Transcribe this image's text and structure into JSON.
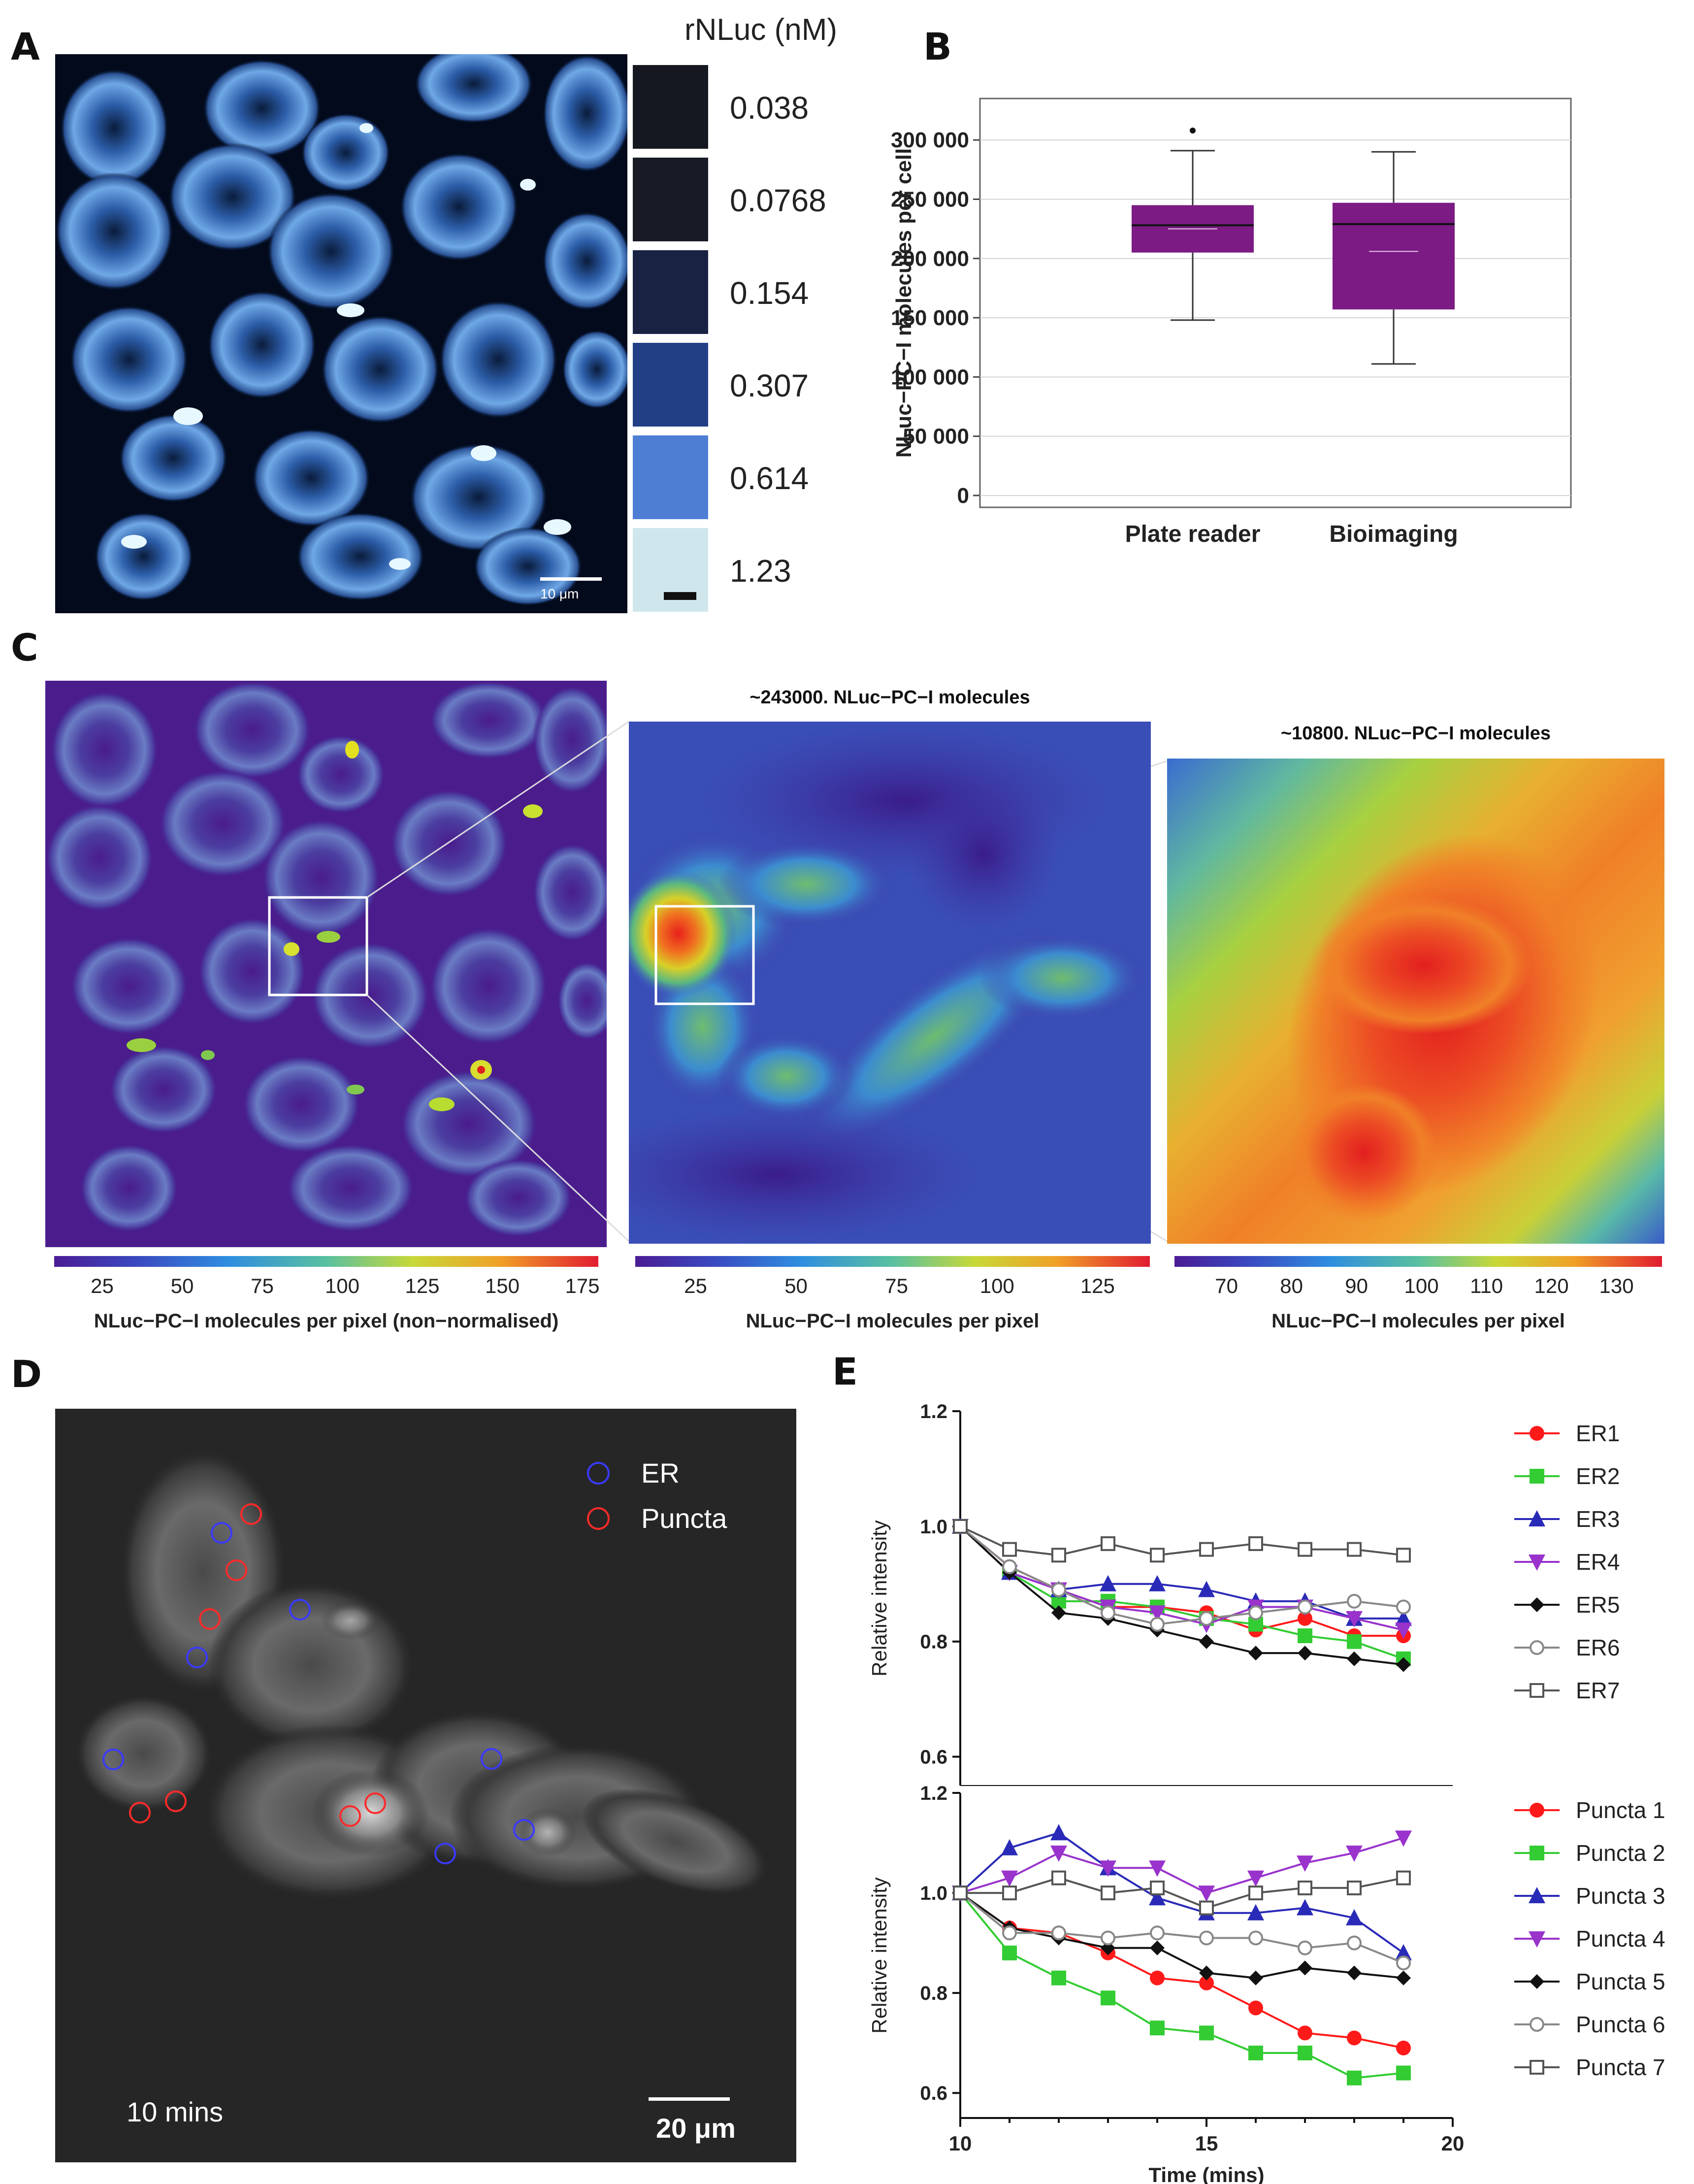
{
  "panels": {
    "a": "A",
    "b": "B",
    "c": "C",
    "d": "D",
    "e": "E"
  },
  "panelA": {
    "title": "rNLuc (nM)",
    "concentrations": [
      "0.038",
      "0.0768",
      "0.154",
      "0.307",
      "0.614",
      "1.23"
    ],
    "swatch_colors": [
      "#151820",
      "#181b26",
      "#1a2244",
      "#223f86",
      "#4e7ed4",
      "#cfe7ec"
    ],
    "scalebar_label": "10 μm"
  },
  "panelC": {
    "zoom1_title": "~243000. NLuc−PC−I molecules",
    "zoom2_title": "~10800. NLuc−PC−I molecules",
    "colorbars": [
      {
        "ticks": [
          "25",
          "50",
          "75",
          "100",
          "125",
          "150",
          "175"
        ],
        "min": 10,
        "max": 180,
        "label": "NLuc−PC−I molecules per pixel (non−normalised)"
      },
      {
        "ticks": [
          "25",
          "50",
          "75",
          "100",
          "125"
        ],
        "min": 10,
        "max": 138,
        "label": "NLuc−PC−I molecules per pixel"
      },
      {
        "ticks": [
          "70",
          "80",
          "90",
          "100",
          "110",
          "120",
          "130"
        ],
        "min": 62,
        "max": 137,
        "label": "NLuc−PC−I molecules per pixel"
      }
    ]
  },
  "panelD": {
    "legend": [
      {
        "label": "ER",
        "color": "#3a3aff"
      },
      {
        "label": "Puncta",
        "color": "#ff2a2a"
      }
    ],
    "time_label": "10 mins",
    "scalebar_label": "20 μm"
  },
  "chart_data": [
    {
      "type": "box",
      "title": "",
      "ylabel": "NLuc−PC−I molecules per cell",
      "ylim": [
        -10000,
        335000
      ],
      "yticks": [
        0,
        50000,
        100000,
        150000,
        200000,
        250000,
        300000
      ],
      "ytick_labels": [
        "0",
        "50 000",
        "100 000",
        "150 000",
        "200 000",
        "250 000",
        "300 000"
      ],
      "categories": [
        "Plate reader",
        "Bioimaging"
      ],
      "boxes": [
        {
          "name": "Plate reader",
          "min": 148000,
          "q1": 205000,
          "median": 228000,
          "mean": 225000,
          "q3": 245000,
          "max": 291000,
          "outliers": [
            308000
          ]
        },
        {
          "name": "Bioimaging",
          "min": 111000,
          "q1": 157000,
          "median": 229000,
          "mean": 206000,
          "q3": 247000,
          "max": 290000,
          "outliers": []
        }
      ],
      "box_color": "#7b1b83",
      "grid": true
    },
    {
      "type": "line",
      "xlabel": "",
      "ylabel": "Relative intensity",
      "xlim": [
        10,
        20
      ],
      "ylim": [
        0.55,
        1.2
      ],
      "yticks": [
        "0.6",
        "0.8",
        "1.0",
        "1.2"
      ],
      "x": [
        10,
        11,
        12,
        13,
        14,
        15,
        16,
        17,
        18,
        19
      ],
      "series": [
        {
          "name": "ER1",
          "color": "#ff1a1a",
          "marker": "circle",
          "values": [
            1.0,
            0.93,
            0.89,
            0.86,
            0.86,
            0.85,
            0.82,
            0.84,
            0.81,
            0.81
          ]
        },
        {
          "name": "ER2",
          "color": "#33cc33",
          "marker": "square",
          "values": [
            1.0,
            0.92,
            0.87,
            0.87,
            0.86,
            0.84,
            0.83,
            0.81,
            0.8,
            0.77
          ]
        },
        {
          "name": "ER3",
          "color": "#2a2ab8",
          "marker": "triangle",
          "values": [
            1.0,
            0.92,
            0.89,
            0.9,
            0.9,
            0.89,
            0.87,
            0.87,
            0.84,
            0.84
          ]
        },
        {
          "name": "ER4",
          "color": "#9933cc",
          "marker": "triangle-down",
          "values": [
            1.0,
            0.92,
            0.89,
            0.86,
            0.85,
            0.83,
            0.86,
            0.86,
            0.84,
            0.82
          ]
        },
        {
          "name": "ER5",
          "color": "#111111",
          "marker": "diamond",
          "values": [
            1.0,
            0.92,
            0.85,
            0.84,
            0.82,
            0.8,
            0.78,
            0.78,
            0.77,
            0.76
          ]
        },
        {
          "name": "ER6",
          "color": "#888888",
          "marker": "open-circle",
          "values": [
            1.0,
            0.93,
            0.89,
            0.85,
            0.83,
            0.84,
            0.85,
            0.86,
            0.87,
            0.86
          ]
        },
        {
          "name": "ER7",
          "color": "#555555",
          "marker": "open-square",
          "values": [
            1.0,
            0.96,
            0.95,
            0.97,
            0.95,
            0.96,
            0.97,
            0.96,
            0.96,
            0.95
          ]
        }
      ]
    },
    {
      "type": "line",
      "xlabel": "Time (mins)",
      "ylabel": "Relative intensity",
      "xlim": [
        10,
        20
      ],
      "ylim": [
        0.55,
        1.2
      ],
      "xticks": [
        "10",
        "15",
        "20"
      ],
      "yticks": [
        "0.6",
        "0.8",
        "1.0",
        "1.2"
      ],
      "x": [
        10,
        11,
        12,
        13,
        14,
        15,
        16,
        17,
        18,
        19
      ],
      "series": [
        {
          "name": "Puncta 1",
          "color": "#ff1a1a",
          "marker": "circle",
          "values": [
            1.0,
            0.93,
            0.92,
            0.88,
            0.83,
            0.82,
            0.77,
            0.72,
            0.71,
            0.69
          ]
        },
        {
          "name": "Puncta 2",
          "color": "#33cc33",
          "marker": "square",
          "values": [
            1.0,
            0.88,
            0.83,
            0.79,
            0.73,
            0.72,
            0.68,
            0.68,
            0.63,
            0.64
          ]
        },
        {
          "name": "Puncta 3",
          "color": "#2a2ab8",
          "marker": "triangle",
          "values": [
            1.0,
            1.09,
            1.12,
            1.05,
            0.99,
            0.96,
            0.96,
            0.97,
            0.95,
            0.88
          ]
        },
        {
          "name": "Puncta 4",
          "color": "#9933cc",
          "marker": "triangle-down",
          "values": [
            1.0,
            1.03,
            1.08,
            1.05,
            1.05,
            1.0,
            1.03,
            1.06,
            1.08,
            1.11
          ]
        },
        {
          "name": "Puncta 5",
          "color": "#111111",
          "marker": "diamond",
          "values": [
            1.0,
            0.93,
            0.91,
            0.89,
            0.89,
            0.84,
            0.83,
            0.85,
            0.84,
            0.83
          ]
        },
        {
          "name": "Puncta 6",
          "color": "#888888",
          "marker": "open-circle",
          "values": [
            1.0,
            0.92,
            0.92,
            0.91,
            0.92,
            0.91,
            0.91,
            0.89,
            0.9,
            0.86
          ]
        },
        {
          "name": "Puncta 7",
          "color": "#555555",
          "marker": "open-square",
          "values": [
            1.0,
            1.0,
            1.03,
            1.0,
            1.01,
            0.97,
            1.0,
            1.01,
            1.01,
            1.03
          ]
        }
      ]
    }
  ]
}
